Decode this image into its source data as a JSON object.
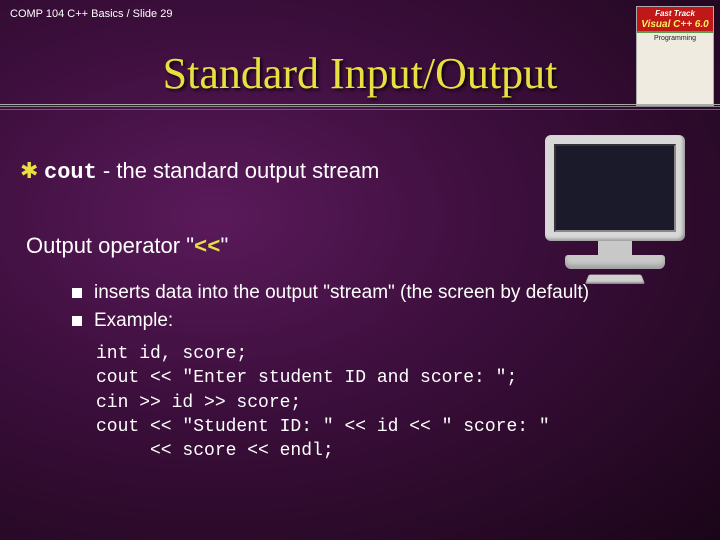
{
  "breadcrumb": "COMP 104 C++ Basics / Slide 29",
  "book": {
    "fasttrack": "Fast Track",
    "product": "Visual C++ 6.0",
    "sub": "Programming"
  },
  "title": "Standard Input/Output",
  "line1": {
    "code": "cout",
    "rest": " - the standard output stream"
  },
  "subhead": {
    "pre": "Output operator \"",
    "op": "<<",
    "post": "\""
  },
  "bullets": [
    "inserts data into the output \"stream\" (the screen by default)",
    "Example:"
  ],
  "code": "int id, score;\ncout << \"Enter student ID and score: \";\ncin >> id >> score;\ncout << \"Student ID: \" << id << \" score: \"\n     << score << endl;",
  "colors": {
    "accent": "#e8e040",
    "bg_dark": "#1a0518",
    "bg_mid": "#3d0f3d",
    "bg_light": "#5a1a5a",
    "text": "#ffffff"
  },
  "fonts": {
    "title_family": "Times New Roman",
    "title_size_pt": 44,
    "body_size_pt": 22,
    "bullet_size_pt": 19,
    "code_size_pt": 18,
    "mono_family": "Courier New"
  }
}
